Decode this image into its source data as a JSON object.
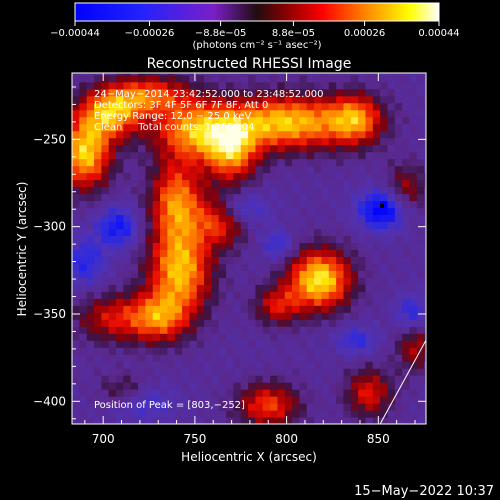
{
  "chart_data": {
    "type": "heatmap",
    "title": "Reconstructed RHESSI Image",
    "xlabel": "Heliocentric X (arcsec)",
    "ylabel": "Heliocentric Y (arcsec)",
    "xlim": [
      683,
      876
    ],
    "ylim": [
      -413,
      -212
    ],
    "x_ticks": [
      700,
      750,
      800,
      850
    ],
    "x_tick_labels": [
      "700",
      "750",
      "800",
      "850"
    ],
    "y_ticks": [
      -250,
      -300,
      -350,
      -400
    ],
    "y_tick_labels": [
      "−250",
      "−300",
      "−350",
      "−400"
    ],
    "colorbar": {
      "range": [
        -0.00044,
        0.00044
      ],
      "ticks": [
        -0.00044,
        -0.00026,
        -8.8e-05,
        8.8e-05,
        0.00026,
        0.00044
      ],
      "tick_labels": [
        "−0.00044",
        "−0.00026",
        "−8.8e−05",
        "8.8e−05",
        "0.00026",
        "0.00044"
      ],
      "units_label": "(photons cm⁻² s⁻¹ asec⁻²)"
    },
    "annotations": [
      "24−May−2014 23:42:52.000 to 23:48:52.000",
      "Detectors: 3F 4F 5F 6F 7F 8F, Att 0",
      "Energy Range: 12.0 − 25.0 keV",
      "Clean     Total counts: 1.26E+04"
    ],
    "peak_label": "Position of Peak = [803,−252]",
    "peak": [
      803,
      -252
    ],
    "limb_line": [
      [
        851,
        -413
      ],
      [
        876,
        -365
      ]
    ],
    "sources": [
      {
        "x": 690,
        "y": -258,
        "sx": 10,
        "sy": 14,
        "a": 1.05
      },
      {
        "x": 704,
        "y": -235,
        "sx": 12,
        "sy": 10,
        "a": 0.9
      },
      {
        "x": 725,
        "y": -224,
        "sx": 16,
        "sy": 8,
        "a": 0.7
      },
      {
        "x": 750,
        "y": -245,
        "sx": 16,
        "sy": 12,
        "a": 0.85
      },
      {
        "x": 770,
        "y": -258,
        "sx": 10,
        "sy": 12,
        "a": 0.8
      },
      {
        "x": 800,
        "y": -240,
        "sx": 26,
        "sy": 11,
        "a": 1.05
      },
      {
        "x": 838,
        "y": -238,
        "sx": 10,
        "sy": 10,
        "a": 0.7
      },
      {
        "x": 740,
        "y": -285,
        "sx": 10,
        "sy": 16,
        "a": 0.85
      },
      {
        "x": 765,
        "y": -296,
        "sx": 10,
        "sy": 10,
        "a": 0.7
      },
      {
        "x": 742,
        "y": -325,
        "sx": 12,
        "sy": 18,
        "a": 1.0
      },
      {
        "x": 730,
        "y": -352,
        "sx": 11,
        "sy": 10,
        "a": 0.7
      },
      {
        "x": 705,
        "y": -352,
        "sx": 14,
        "sy": 10,
        "a": 0.55
      },
      {
        "x": 818,
        "y": -330,
        "sx": 12,
        "sy": 12,
        "a": 1.15
      },
      {
        "x": 795,
        "y": -345,
        "sx": 9,
        "sy": 8,
        "a": 0.55
      },
      {
        "x": 790,
        "y": -402,
        "sx": 12,
        "sy": 9,
        "a": 0.7
      },
      {
        "x": 845,
        "y": -395,
        "sx": 9,
        "sy": 10,
        "a": 0.6
      },
      {
        "x": 870,
        "y": -368,
        "sx": 7,
        "sy": 10,
        "a": 0.5
      },
      {
        "x": 712,
        "y": -395,
        "sx": 10,
        "sy": 7,
        "a": 0.45
      },
      {
        "x": 865,
        "y": -278,
        "sx": 8,
        "sy": 10,
        "a": 0.45
      },
      {
        "x": 708,
        "y": -300,
        "sx": 8,
        "sy": 8,
        "a": -0.6
      },
      {
        "x": 690,
        "y": -320,
        "sx": 8,
        "sy": 10,
        "a": -0.45
      },
      {
        "x": 775,
        "y": -290,
        "sx": 10,
        "sy": 7,
        "a": -0.5
      },
      {
        "x": 852,
        "y": -290,
        "sx": 9,
        "sy": 8,
        "a": -0.8
      },
      {
        "x": 795,
        "y": -310,
        "sx": 6,
        "sy": 6,
        "a": -0.4
      },
      {
        "x": 720,
        "y": -400,
        "sx": 12,
        "sy": 7,
        "a": -0.45
      },
      {
        "x": 868,
        "y": -350,
        "sx": 6,
        "sy": 8,
        "a": -0.45
      },
      {
        "x": 838,
        "y": -365,
        "sx": 8,
        "sy": 6,
        "a": -0.4
      }
    ]
  },
  "footer": {
    "timestamp": "15−May−2022 10:37"
  }
}
